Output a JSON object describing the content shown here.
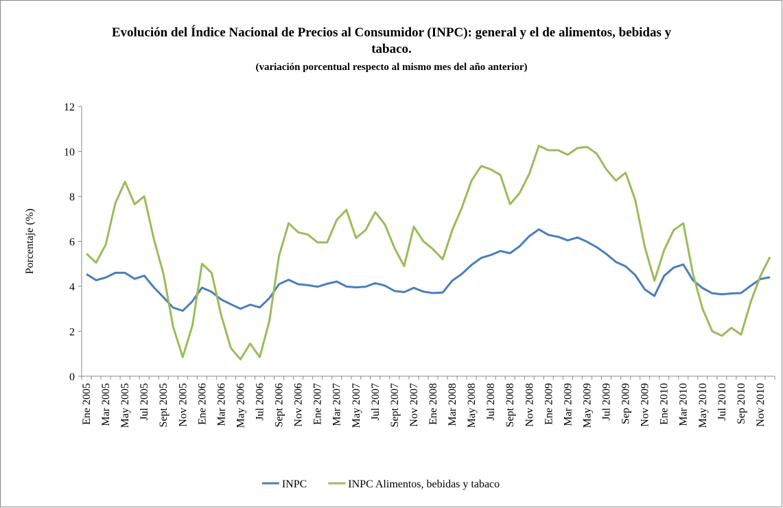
{
  "chart_data": {
    "type": "line",
    "title": "Evolución del Índice Nacional de Precios al Consumidor (INPC): general y el de alimentos, bebidas y tabaco.",
    "subtitle": "(variación porcentual respecto al mismo mes del año anterior)",
    "y_label": "Porcentaje (%)",
    "categories": [
      "Ene 2005",
      null,
      "Mar 2005",
      null,
      "May 2005",
      null,
      "Jul 2005",
      null,
      "Sept 2005",
      null,
      "Nov 2005",
      null,
      "Ene 2006",
      null,
      "Mar 2006",
      null,
      "May 2006",
      null,
      "Jul 2006",
      null,
      "Sept 2006",
      null,
      "Nov 2006",
      null,
      "Ene 2007",
      null,
      "Mar 2007",
      null,
      "May 2007",
      null,
      "Jul 2007",
      null,
      "Sept 2007",
      null,
      "Nov 2007",
      null,
      "Ene 2008",
      null,
      "Mar 2008",
      null,
      "May 2008",
      null,
      "Jul 2008",
      null,
      "Sept 2008",
      null,
      "Nov 2008",
      null,
      "Ene 2009",
      null,
      "Mar 2009",
      null,
      "May 2009",
      null,
      "Jul 2009",
      null,
      "Sep 2009",
      null,
      "Nov 2009",
      null,
      "Ene 2010",
      null,
      "Mar 2010",
      null,
      "May 2010",
      null,
      "Jul 2010",
      null,
      "Sep 2010",
      null,
      "Nov 2010",
      null
    ],
    "series": [
      {
        "name": "INPC",
        "color": "#4a7ebb",
        "values": [
          4.54,
          4.27,
          4.39,
          4.6,
          4.6,
          4.33,
          4.47,
          3.95,
          3.51,
          3.05,
          2.91,
          3.33,
          3.94,
          3.75,
          3.41,
          3.2,
          3.0,
          3.18,
          3.06,
          3.47,
          4.09,
          4.29,
          4.09,
          4.05,
          3.98,
          4.11,
          4.21,
          3.99,
          3.95,
          3.98,
          4.14,
          4.03,
          3.79,
          3.74,
          3.93,
          3.76,
          3.7,
          3.72,
          4.25,
          4.55,
          4.95,
          5.26,
          5.39,
          5.57,
          5.47,
          5.78,
          6.23,
          6.53,
          6.28,
          6.2,
          6.04,
          6.17,
          5.98,
          5.74,
          5.44,
          5.08,
          4.89,
          4.5,
          3.86,
          3.57,
          4.46,
          4.83,
          4.97,
          4.27,
          3.92,
          3.69,
          3.64,
          3.68,
          3.7,
          4.02,
          4.32,
          4.4
        ]
      },
      {
        "name": "INPC Alimentos, bebidas y tabaco",
        "color": "#9bbb59",
        "values": [
          5.45,
          5.05,
          5.85,
          7.7,
          8.65,
          7.65,
          8.0,
          6.1,
          4.55,
          2.2,
          0.85,
          2.25,
          5.0,
          4.6,
          2.7,
          1.25,
          0.75,
          1.45,
          0.85,
          2.45,
          5.35,
          6.8,
          6.4,
          6.3,
          5.95,
          5.95,
          6.95,
          7.4,
          6.15,
          6.5,
          7.3,
          6.75,
          5.7,
          4.9,
          6.65,
          6.0,
          5.65,
          5.2,
          6.5,
          7.5,
          8.7,
          9.35,
          9.2,
          8.95,
          7.65,
          8.15,
          9.0,
          10.25,
          10.05,
          10.05,
          9.85,
          10.15,
          10.2,
          9.9,
          9.2,
          8.7,
          9.05,
          7.85,
          5.75,
          4.25,
          5.6,
          6.5,
          6.8,
          4.55,
          3.0,
          2.0,
          1.8,
          2.15,
          1.85,
          3.3,
          4.45,
          5.3
        ]
      }
    ],
    "ylim": [
      0,
      12
    ],
    "yticks": [
      0,
      2,
      4,
      6,
      8,
      10,
      12
    ],
    "legend": "bottom"
  }
}
